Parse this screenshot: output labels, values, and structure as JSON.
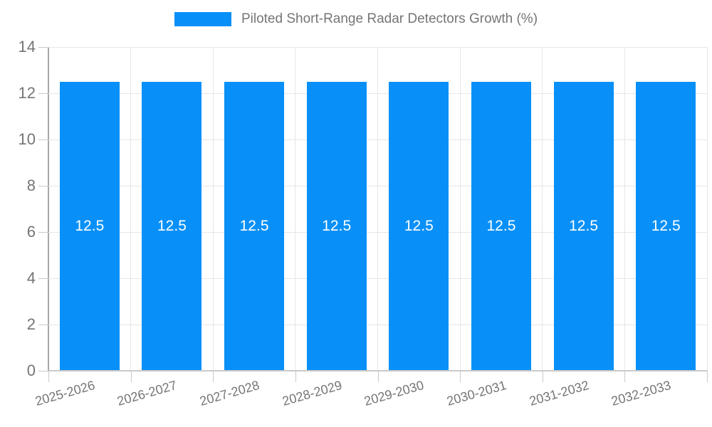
{
  "legend": {
    "label": "Piloted Short-Range Radar Detectors Growth (%)"
  },
  "chart_data": {
    "type": "bar",
    "title": "Piloted Short-Range Radar Detectors Growth (%)",
    "categories": [
      "2025-2026",
      "2026-2027",
      "2027-2028",
      "2028-2029",
      "2029-2030",
      "2030-2031",
      "2031-2032",
      "2032-2033"
    ],
    "series": [
      {
        "name": "Piloted Short-Range Radar Detectors Growth (%)",
        "values": [
          12.5,
          12.5,
          12.5,
          12.5,
          12.5,
          12.5,
          12.5,
          12.5
        ]
      }
    ],
    "bar_labels": [
      "12.5",
      "12.5",
      "12.5",
      "12.5",
      "12.5",
      "12.5",
      "12.5",
      "12.5"
    ],
    "xlabel": "",
    "ylabel": "",
    "ylim": [
      0,
      14
    ],
    "yticks": [
      0,
      2,
      4,
      6,
      8,
      10,
      12,
      14
    ],
    "grid": true,
    "legend_position": "top",
    "colors": {
      "bar": "#0890F8",
      "bar_label": "#FFFFFF",
      "grid": "#E6E6E6",
      "axis": "#A6A6A6",
      "tick": "#C9C9C9",
      "text": "#757575"
    }
  }
}
